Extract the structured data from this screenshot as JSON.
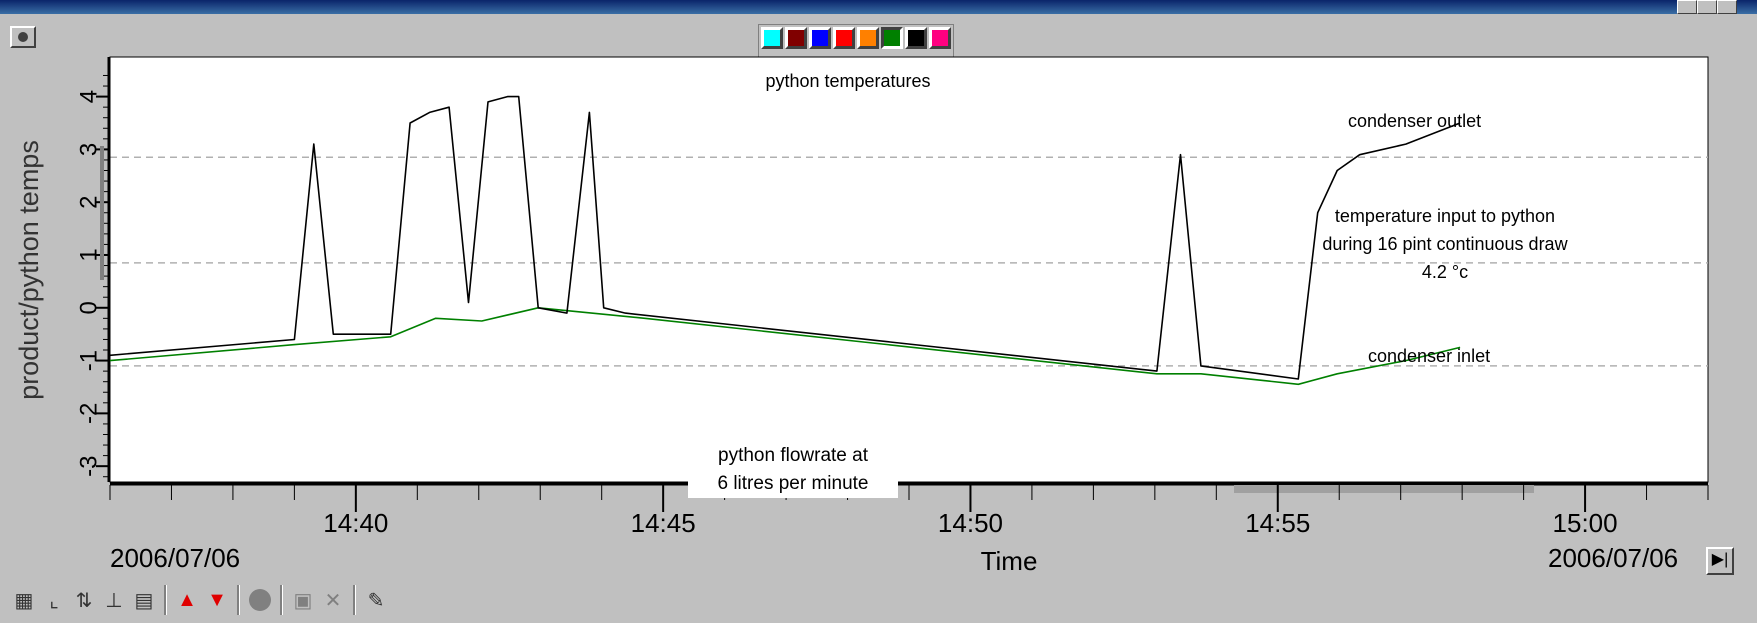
{
  "palette": {
    "colors": [
      "#00ffff",
      "#800000",
      "#0000ff",
      "#ff0000",
      "#ff8000",
      "#008000",
      "#000000",
      "#ff0080"
    ],
    "pressed_index": 5
  },
  "annotations": {
    "outlet_label": "condenser outlet",
    "inlet_label": "condenser inlet",
    "input_line1": "temperature input to python",
    "input_line2": "during 16 pint continuous draw",
    "input_line3": "4.2 °c",
    "flow_line1": "python flowrate at",
    "flow_line2": "6  litres per minute"
  },
  "dates": {
    "start": "2006/07/06",
    "end": "2006/07/06"
  },
  "toolbar": {
    "icons": [
      "grid-icon",
      "axis-icon",
      "swap-axes-icon",
      "axis-scale-icon",
      "properties-icon",
      "arrow-up-red-icon",
      "arrow-down-red-icon",
      "record-icon",
      "window-icon",
      "cross-icon",
      "pen-icon"
    ]
  },
  "chart_data": {
    "type": "line",
    "title": "python temperatures",
    "xlabel": "Time",
    "ylabel": "product/python temps",
    "xlim": [
      "14:36:00",
      "15:02:00"
    ],
    "ylim": [
      -3.3,
      4.75
    ],
    "x_ticks": [
      "14:40",
      "14:45",
      "14:50",
      "14:55",
      "15:00"
    ],
    "y_ticks": [
      -3,
      -2,
      -1,
      0,
      1,
      2,
      3,
      4
    ],
    "gridlines_y": [
      2.85,
      0.85,
      -1.1
    ],
    "series": [
      {
        "name": "condenser outlet",
        "color": "#000000",
        "points": [
          [
            "14:36:00",
            -0.9
          ],
          [
            "14:39:00",
            -0.6
          ],
          [
            "14:39:19",
            3.1
          ],
          [
            "14:39:38",
            -0.5
          ],
          [
            "14:40:34",
            -0.5
          ],
          [
            "14:40:53",
            3.5
          ],
          [
            "14:41:12",
            3.7
          ],
          [
            "14:41:31",
            3.8
          ],
          [
            "14:41:50",
            0.1
          ],
          [
            "14:42:09",
            3.9
          ],
          [
            "14:42:28",
            4.0
          ],
          [
            "14:42:39",
            4.0
          ],
          [
            "14:42:58",
            0.0
          ],
          [
            "14:43:26",
            -0.1
          ],
          [
            "14:43:48",
            3.7
          ],
          [
            "14:44:02",
            0.0
          ],
          [
            "14:44:23",
            -0.1
          ],
          [
            "14:53:02",
            -1.2
          ],
          [
            "14:53:25",
            2.9
          ],
          [
            "14:53:45",
            -1.1
          ],
          [
            "14:55:20",
            -1.35
          ],
          [
            "14:55:39",
            1.8
          ],
          [
            "14:55:58",
            2.6
          ],
          [
            "14:56:20",
            2.9
          ],
          [
            "14:57:05",
            3.1
          ],
          [
            "14:57:58",
            3.5
          ]
        ]
      },
      {
        "name": "condenser inlet",
        "color": "#008000",
        "points": [
          [
            "14:36:00",
            -1.0
          ],
          [
            "14:38:59",
            -0.7
          ],
          [
            "14:40:34",
            -0.55
          ],
          [
            "14:41:18",
            -0.2
          ],
          [
            "14:42:03",
            -0.25
          ],
          [
            "14:42:58",
            0.0
          ],
          [
            "14:44:42",
            -0.2
          ],
          [
            "14:53:02",
            -1.25
          ],
          [
            "14:53:45",
            -1.25
          ],
          [
            "14:55:20",
            -1.45
          ],
          [
            "14:55:58",
            -1.25
          ],
          [
            "14:57:05",
            -1.0
          ],
          [
            "14:57:58",
            -0.75
          ]
        ]
      }
    ]
  }
}
